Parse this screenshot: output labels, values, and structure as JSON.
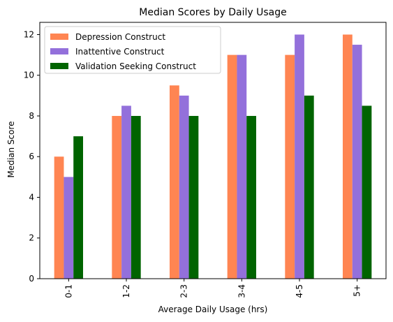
{
  "chart_data": {
    "type": "bar",
    "title": "Median Scores by Daily Usage",
    "xlabel": "Average Daily Usage (hrs)",
    "ylabel": "Median Score",
    "categories": [
      "0-1",
      "1-2",
      "2-3",
      "3-4",
      "4-5",
      "5+"
    ],
    "series": [
      {
        "name": "Depression Construct",
        "color": "#ff8552",
        "values": [
          6,
          8,
          9.5,
          11,
          11,
          12
        ]
      },
      {
        "name": "Inattentive Construct",
        "color": "#9370db",
        "values": [
          5,
          8.5,
          9,
          11,
          12,
          11.5
        ]
      },
      {
        "name": "Validation Seeking Construct",
        "color": "#006400",
        "values": [
          7,
          8,
          8,
          8,
          9,
          8.5
        ]
      }
    ],
    "ylim": [
      0,
      12.6
    ],
    "yticks": [
      0,
      2,
      4,
      6,
      8,
      10,
      12
    ],
    "grid": false,
    "legend_position": "top-left"
  }
}
